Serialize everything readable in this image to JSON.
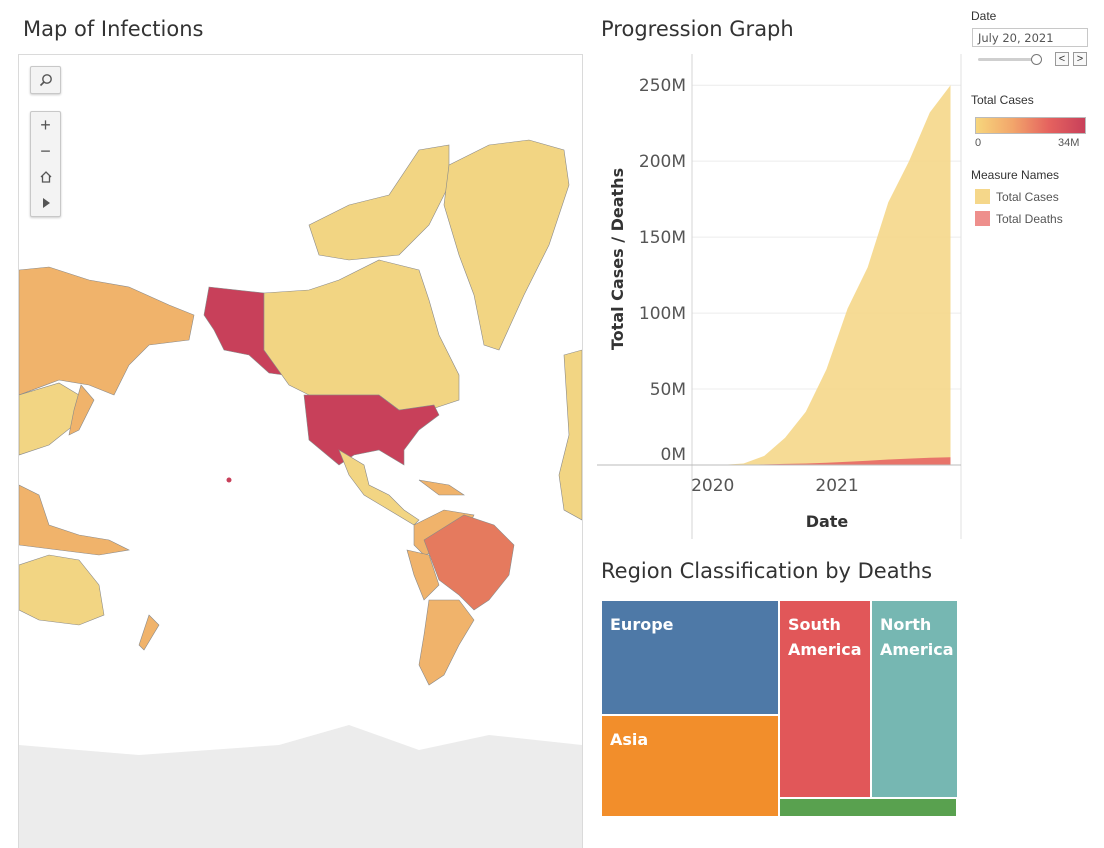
{
  "map": {
    "title": "Map of Infections",
    "controls": {
      "search_icon": "search-icon",
      "zoom_in_icon": "plus-icon",
      "zoom_out_icon": "minus-icon",
      "home_icon": "home-icon",
      "play_icon": "play-icon"
    },
    "colors": {
      "low": "#f2d583",
      "mid": "#f0b36b",
      "high": "#e57a5e",
      "max": "#c8405a",
      "land_bg": "#ececec",
      "border": "#8a8a8a"
    }
  },
  "progression": {
    "title": "Progression Graph"
  },
  "filters": {
    "date_label": "Date",
    "date_value": "July 20, 2021",
    "prev_label": "<",
    "next_label": ">"
  },
  "legends": {
    "total_cases_title": "Total Cases",
    "total_cases_min": "0",
    "total_cases_max": "34M",
    "gradient_colors": [
      "#f7d67c",
      "#f2a66b",
      "#e5635f",
      "#c8405a"
    ],
    "measure_names_title": "Measure Names",
    "measures": [
      {
        "label": "Total Cases",
        "color": "#f5d78a"
      },
      {
        "label": "Total Deaths",
        "color": "#ee8f8c"
      }
    ]
  },
  "treemap_title": "Region Classification by Deaths",
  "chart_data": [
    {
      "type": "area",
      "title": "Progression Graph",
      "xlabel": "Date",
      "ylabel": "Total Cases / Deaths",
      "y_ticks": [
        "0M",
        "50M",
        "100M",
        "150M",
        "200M",
        "250M"
      ],
      "x_ticks": [
        "2020",
        "2021"
      ],
      "ylim": [
        0,
        260
      ],
      "grid": "horizontal",
      "series": [
        {
          "name": "Total Cases",
          "color": "#f5d78a",
          "x": [
            "2020-01-22",
            "2020-04-01",
            "2020-06-01",
            "2020-08-01",
            "2020-10-01",
            "2020-12-01",
            "2021-02-01",
            "2021-04-01",
            "2021-06-01",
            "2021-08-01",
            "2021-10-01",
            "2021-12-01"
          ],
          "values": [
            0,
            1,
            6,
            18,
            35,
            63,
            103,
            130,
            173,
            200,
            232,
            250
          ]
        },
        {
          "name": "Total Deaths",
          "color": "#e8746a",
          "x": [
            "2020-01-22",
            "2020-04-01",
            "2020-06-01",
            "2020-08-01",
            "2020-10-01",
            "2020-12-01",
            "2021-02-01",
            "2021-04-01",
            "2021-06-01",
            "2021-08-01",
            "2021-10-01",
            "2021-12-01"
          ],
          "values": [
            0,
            0.05,
            0.4,
            0.7,
            1.0,
            1.5,
            2.2,
            2.8,
            3.6,
            4.2,
            4.8,
            5.1
          ]
        }
      ]
    },
    {
      "type": "treemap",
      "title": "Region Classification by Deaths",
      "regions": [
        {
          "label": "Europe",
          "color": "#4e79a7"
        },
        {
          "label": "Asia",
          "color": "#f28e2b"
        },
        {
          "label": "South America",
          "color": "#e15759"
        },
        {
          "label": "North America",
          "color": "#76b7b2"
        },
        {
          "label": "",
          "color": "#59a14f"
        }
      ]
    }
  ]
}
